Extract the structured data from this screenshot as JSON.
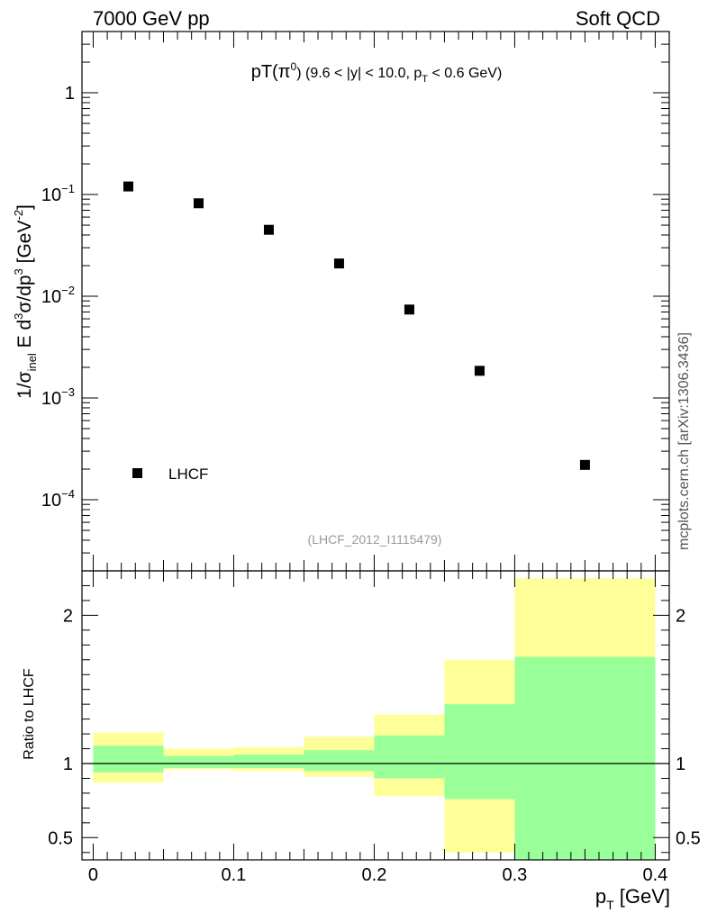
{
  "header": {
    "left": "7000 GeV pp",
    "right": "Soft QCD"
  },
  "watermark": "mcplots.cern.ch [arXiv:1306.3436]",
  "analysis_tag": "(LHCF_2012_I1115479)",
  "colors": {
    "band_outer": "#ffff99",
    "band_inner": "#99ff99",
    "marker": "#000000",
    "axis": "#000000",
    "tag": "#999999"
  },
  "chart_data": [
    {
      "type": "scatter",
      "title_main": "pT(π",
      "title_sup": "0",
      "title_rest": ") (9.6 < |y| < 10.0, p",
      "title_sub": "T",
      "title_end": " < 0.6 GeV)",
      "ylabel": "1/σinel E d3σ/dp3 [GeV-2]",
      "ylabel_parts": {
        "a": "1/σ",
        "a_sub": "inel",
        "b": " E d",
        "b_sup": "3",
        "c": "σ/dp",
        "c_sup": "3",
        "d": " [GeV",
        "d_sup": "-2",
        "e": "]"
      },
      "yscale": "log",
      "ylim": [
        2e-05,
        4
      ],
      "xlim": [
        -0.008,
        0.41
      ],
      "y_ticks": [
        {
          "value": 1,
          "base": "1",
          "exp": ""
        },
        {
          "value": 0.1,
          "base": "10",
          "exp": "−1"
        },
        {
          "value": 0.01,
          "base": "10",
          "exp": "−2"
        },
        {
          "value": 0.001,
          "base": "10",
          "exp": "−3"
        },
        {
          "value": 0.0001,
          "base": "10",
          "exp": "−4"
        }
      ],
      "legend": [
        {
          "name": "LHCF",
          "marker": "square"
        }
      ],
      "series": [
        {
          "name": "LHCF",
          "x": [
            0.025,
            0.075,
            0.125,
            0.175,
            0.225,
            0.275,
            0.35
          ],
          "y": [
            0.12,
            0.082,
            0.045,
            0.021,
            0.0074,
            0.00185,
            0.00022
          ]
        }
      ]
    },
    {
      "type": "area",
      "ylabel": "Ratio to LHCF",
      "xlabel": "pT [GeV]",
      "xlabel_main": "p",
      "xlabel_sub": "T",
      "xlabel_unit": " [GeV]",
      "ylim": [
        0.35,
        2.3
      ],
      "xlim": [
        -0.008,
        0.41
      ],
      "reference_line": 1,
      "y_ticks": [
        "0.5",
        "1",
        "2"
      ],
      "y_tick_values": [
        0.5,
        1,
        2
      ],
      "x_ticks": [
        "0",
        "0.1",
        "0.2",
        "0.3",
        "0.4"
      ],
      "x_tick_values": [
        0,
        0.1,
        0.2,
        0.3,
        0.4
      ],
      "bins": [
        {
          "x0": 0.0,
          "x1": 0.05,
          "outer": [
            0.87,
            1.21
          ],
          "inner": [
            0.94,
            1.12
          ]
        },
        {
          "x0": 0.05,
          "x1": 0.1,
          "outer": [
            0.96,
            1.1
          ],
          "inner": [
            0.97,
            1.05
          ]
        },
        {
          "x0": 0.1,
          "x1": 0.15,
          "outer": [
            0.95,
            1.11
          ],
          "inner": [
            0.97,
            1.06
          ]
        },
        {
          "x0": 0.15,
          "x1": 0.2,
          "outer": [
            0.91,
            1.18
          ],
          "inner": [
            0.95,
            1.09
          ]
        },
        {
          "x0": 0.2,
          "x1": 0.25,
          "outer": [
            0.78,
            1.33
          ],
          "inner": [
            0.9,
            1.19
          ]
        },
        {
          "x0": 0.25,
          "x1": 0.3,
          "outer": [
            0.4,
            1.7
          ],
          "inner": [
            0.76,
            1.4
          ]
        },
        {
          "x0": 0.3,
          "x1": 0.4,
          "outer": [
            0.35,
            2.25
          ],
          "inner": [
            0.35,
            1.72
          ]
        }
      ]
    }
  ]
}
